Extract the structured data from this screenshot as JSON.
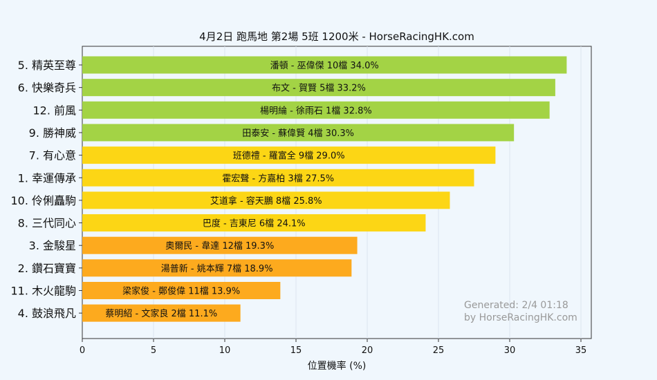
{
  "chart_data": {
    "type": "bar",
    "orientation": "horizontal",
    "title": "4月2日  跑馬地  第2場  5班  1200米 - HorseRacingHK.com",
    "xlabel": "位置機率 (%)",
    "ylabel": "",
    "xlim": [
      0,
      35.5
    ],
    "xticks": [
      0,
      5,
      10,
      15,
      20,
      25,
      30,
      35
    ],
    "grid": "vertical",
    "categories": [
      "5. 精英至尊",
      "6. 快樂奇兵",
      "12. 前風",
      "9. 勝神威",
      "7. 有心意",
      "1. 幸運傳承",
      "10. 伶俐矗駒",
      "8. 三代同心",
      "3. 金駿星",
      "2. 鑽石寶寶",
      "11. 木火龍駒",
      "4. 鼓浪飛凡"
    ],
    "values": [
      34.0,
      33.2,
      32.8,
      30.3,
      29.0,
      27.5,
      25.8,
      24.1,
      19.3,
      18.9,
      13.9,
      11.1
    ],
    "bar_labels": [
      "潘頓 - 巫偉傑 10檔  34.0%",
      "布文 - 賀賢 5檔  33.2%",
      "楊明綸 - 徐雨石 1檔  32.8%",
      "田泰安 - 蘇偉賢 4檔  30.3%",
      "班德禮 - 羅富全 9檔  29.0%",
      "霍宏聲 - 方嘉柏 3檔  27.5%",
      "艾道拿 - 容天鵬 8檔  25.8%",
      "巴度 - 吉東尼 6檔  24.1%",
      "奧爾民 - 韋達 12檔  19.3%",
      "湯普新 - 姚本輝 7檔  18.9%",
      "梁家俊 - 鄭俊偉 11檔  13.9%",
      "蔡明紹 - 文家良 2檔  11.1%"
    ],
    "colors": [
      "#a3d345",
      "#a3d345",
      "#a3d345",
      "#a3d345",
      "#fcd615",
      "#fcd615",
      "#fcd615",
      "#fcd615",
      "#fdaa1e",
      "#fdaa1e",
      "#fdaa1e",
      "#fdaa1e"
    ],
    "watermark": [
      "Generated: 2/4 01:18",
      "by HorseRacingHK.com"
    ]
  }
}
